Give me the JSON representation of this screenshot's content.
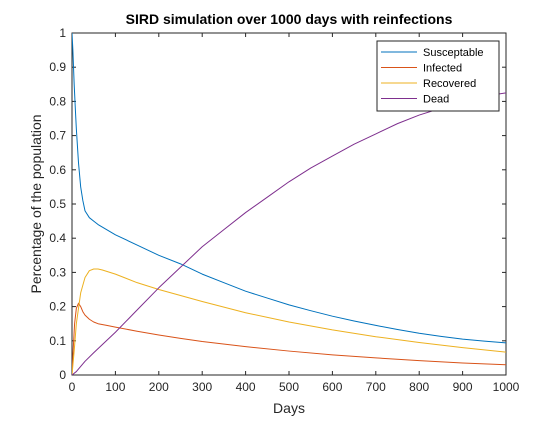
{
  "chart_data": {
    "type": "line",
    "title": "SIRD simulation over 1000 days with reinfections",
    "xlabel": "Days",
    "ylabel": "Percentage of the population",
    "xlim": [
      0,
      1000
    ],
    "ylim": [
      0,
      1
    ],
    "xticks": [
      0,
      100,
      200,
      300,
      400,
      500,
      600,
      700,
      800,
      900,
      1000
    ],
    "yticks": [
      0,
      0.1,
      0.2,
      0.3,
      0.4,
      0.5,
      0.6,
      0.7,
      0.8,
      0.9,
      1
    ],
    "xtick_labels": [
      "0",
      "100",
      "200",
      "300",
      "400",
      "500",
      "600",
      "700",
      "800",
      "900",
      "1000"
    ],
    "ytick_labels": [
      "0",
      "0.1",
      "0.2",
      "0.3",
      "0.4",
      "0.5",
      "0.6",
      "0.7",
      "0.8",
      "0.9",
      "1"
    ],
    "grid": false,
    "legend_position": "top-right",
    "series": [
      {
        "name": "Susceptable",
        "color": "#0072BD",
        "x": [
          0,
          2,
          5,
          8,
          10,
          15,
          20,
          25,
          30,
          40,
          50,
          60,
          80,
          100,
          150,
          200,
          250,
          300,
          350,
          400,
          450,
          500,
          550,
          600,
          650,
          700,
          750,
          800,
          850,
          900,
          950,
          1000
        ],
        "y": [
          1.0,
          0.95,
          0.85,
          0.77,
          0.72,
          0.62,
          0.55,
          0.51,
          0.48,
          0.46,
          0.45,
          0.44,
          0.425,
          0.41,
          0.38,
          0.35,
          0.325,
          0.295,
          0.27,
          0.245,
          0.225,
          0.205,
          0.188,
          0.172,
          0.158,
          0.145,
          0.133,
          0.122,
          0.113,
          0.105,
          0.099,
          0.094
        ]
      },
      {
        "name": "Infected",
        "color": "#D95319",
        "x": [
          0,
          3,
          6,
          10,
          15,
          20,
          25,
          30,
          40,
          50,
          60,
          80,
          100,
          150,
          200,
          250,
          300,
          400,
          500,
          600,
          700,
          800,
          900,
          1000
        ],
        "y": [
          0.0,
          0.08,
          0.15,
          0.195,
          0.21,
          0.2,
          0.185,
          0.175,
          0.163,
          0.155,
          0.15,
          0.145,
          0.14,
          0.128,
          0.117,
          0.107,
          0.098,
          0.083,
          0.07,
          0.059,
          0.05,
          0.042,
          0.035,
          0.03
        ]
      },
      {
        "name": "Recovered",
        "color": "#EDB120",
        "x": [
          0,
          5,
          10,
          20,
          30,
          40,
          50,
          60,
          70,
          80,
          100,
          150,
          200,
          300,
          400,
          500,
          600,
          700,
          800,
          900,
          1000
        ],
        "y": [
          0.0,
          0.07,
          0.15,
          0.24,
          0.285,
          0.305,
          0.31,
          0.31,
          0.307,
          0.303,
          0.295,
          0.27,
          0.25,
          0.215,
          0.182,
          0.155,
          0.132,
          0.112,
          0.095,
          0.08,
          0.067
        ]
      },
      {
        "name": "Dead",
        "color": "#7E2F8E",
        "x": [
          0,
          10,
          20,
          30,
          50,
          75,
          100,
          150,
          200,
          250,
          300,
          350,
          400,
          450,
          500,
          550,
          600,
          650,
          700,
          750,
          800,
          850,
          900,
          950,
          1000
        ],
        "y": [
          0.0,
          0.01,
          0.025,
          0.04,
          0.065,
          0.095,
          0.125,
          0.19,
          0.255,
          0.315,
          0.375,
          0.425,
          0.475,
          0.52,
          0.565,
          0.605,
          0.64,
          0.675,
          0.705,
          0.735,
          0.76,
          0.78,
          0.8,
          0.815,
          0.825
        ]
      }
    ]
  }
}
